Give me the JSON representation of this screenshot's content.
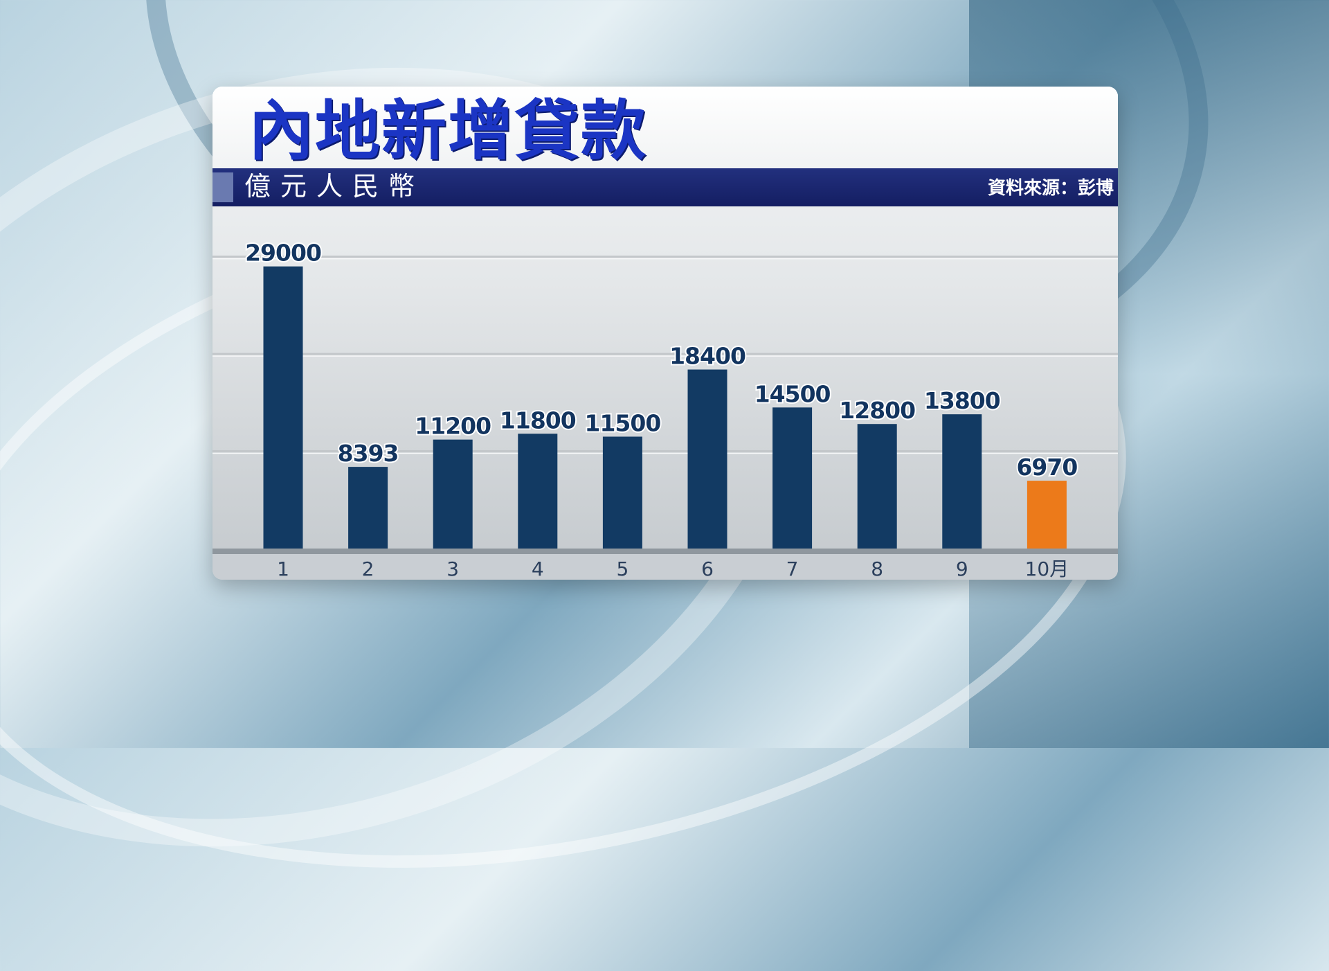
{
  "chart_data": {
    "type": "bar",
    "title": "內地新增貸款",
    "subtitle": "億元人民幣",
    "source": "資料來源：彭博",
    "categories": [
      "1",
      "2",
      "3",
      "4",
      "5",
      "6",
      "7",
      "8",
      "9",
      "10月"
    ],
    "values": [
      29000,
      8393,
      11200,
      11800,
      11500,
      18400,
      14500,
      12800,
      13800,
      6970
    ],
    "value_labels": [
      "29000",
      "8393",
      "11200",
      "11800",
      "11500",
      "18400",
      "14500",
      "12800",
      "13800",
      "6970"
    ],
    "ylim": [
      0,
      30400
    ],
    "xlabel": "",
    "ylabel": "",
    "grid": true,
    "colors": {
      "bar": "#123a63",
      "highlight_bar": "#ec7a1a",
      "label": "#12345f",
      "title": "#1b35c4"
    },
    "highlight_index": 9
  }
}
